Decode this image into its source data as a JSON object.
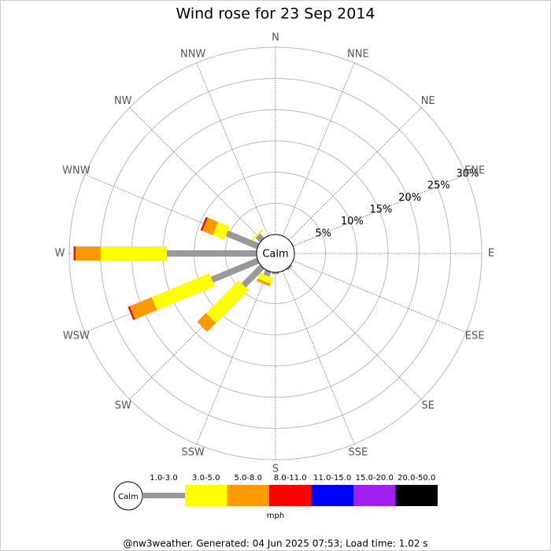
{
  "chart_data": {
    "type": "wind_rose",
    "title": "Wind rose for 23 Sep 2014",
    "center_label": "Calm",
    "directions": [
      "N",
      "NNE",
      "NE",
      "ENE",
      "E",
      "ESE",
      "SE",
      "SSE",
      "S",
      "SSW",
      "SW",
      "WSW",
      "W",
      "WNW",
      "NW",
      "NNW"
    ],
    "rlim": [
      0,
      30
    ],
    "rticks": [
      {
        "value": 5,
        "label": "5%"
      },
      {
        "value": 10,
        "label": "10%"
      },
      {
        "value": 15,
        "label": "15%"
      },
      {
        "value": 20,
        "label": "20%"
      },
      {
        "value": 25,
        "label": "25%"
      },
      {
        "value": 30,
        "label": "30%"
      }
    ],
    "series": [
      {
        "name": "1.0-3.0",
        "color": "#999999",
        "values": [
          0,
          0,
          0,
          0,
          0,
          0,
          0.3,
          0,
          0.3,
          0.8,
          4.2,
          8,
          14.4,
          5.4,
          1,
          0
        ]
      },
      {
        "name": "3.0-5.0",
        "color": "#ffff00",
        "values": [
          0,
          0,
          0,
          0,
          0,
          0,
          0,
          0,
          0,
          1,
          7.4,
          10,
          10.6,
          2,
          0.3,
          0
        ]
      },
      {
        "name": "5.0-8.0",
        "color": "#ff9900",
        "values": [
          0,
          0,
          0,
          0,
          0,
          0,
          0,
          0,
          0,
          0.4,
          2,
          3.8,
          4,
          1.8,
          0,
          0
        ]
      },
      {
        "name": "8.0-11.0",
        "color": "#ff0000",
        "values": [
          0,
          0,
          0,
          0,
          0,
          0,
          0,
          0,
          0,
          0,
          0,
          0.3,
          0.3,
          0.3,
          0,
          0
        ]
      },
      {
        "name": "11.0-15.0",
        "color": "#0000ff",
        "values": [
          0,
          0,
          0,
          0,
          0,
          0,
          0,
          0,
          0,
          0,
          0,
          0,
          0,
          0,
          0,
          0
        ]
      },
      {
        "name": "15.0-20.0",
        "color": "#a020f0",
        "values": [
          0,
          0,
          0,
          0,
          0,
          0,
          0,
          0,
          0,
          0,
          0,
          0,
          0,
          0,
          0,
          0
        ]
      },
      {
        "name": "20.0-50.0",
        "color": "#000000",
        "values": [
          0,
          0,
          0,
          0,
          0,
          0,
          0,
          0,
          0,
          0,
          0,
          0,
          0,
          0,
          0,
          0
        ]
      }
    ],
    "legend_unit": "mph",
    "footer": "@nw3weather. Generated: 04 Jun 2025 07:53; Load time: 1.02 s"
  }
}
